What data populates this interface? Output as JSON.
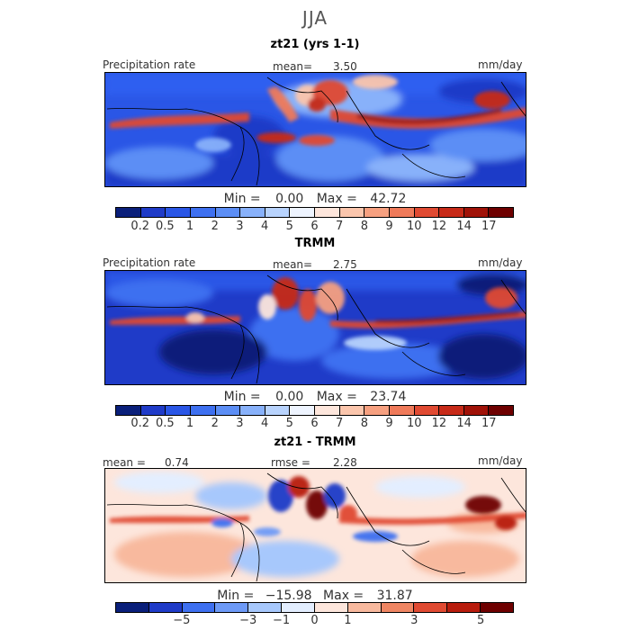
{
  "season": "JJA",
  "colors": {
    "precip": [
      "#0a1f7a",
      "#1f3bc8",
      "#2a56e6",
      "#3e70f0",
      "#5c8ef5",
      "#88b1fa",
      "#b8d3fd",
      "#eef4ff",
      "#fde6dc",
      "#fbc6ad",
      "#f6a080",
      "#ef7a5a",
      "#e04a32",
      "#c72a18",
      "#a01208",
      "#6e0000"
    ],
    "diff": [
      "#0a1f7a",
      "#1f3bc8",
      "#3e70f0",
      "#6d9af7",
      "#a7c8fc",
      "#e3eeff",
      "#fde6dc",
      "#f8b99e",
      "#ef8663",
      "#e04a32",
      "#b81c0d",
      "#6e0000"
    ]
  },
  "panels": [
    {
      "title": "zt21 (yrs 1-1)",
      "left_label": "Precipitation rate",
      "center_label": "mean=",
      "center_value": "3.50",
      "units": "mm/day",
      "min_label": "Min =",
      "min_value": "0.00",
      "max_label": "Max =",
      "max_value": "42.72",
      "ticks": [
        "0.2",
        "0.5",
        "1",
        "2",
        "3",
        "4",
        "5",
        "6",
        "7",
        "8",
        "9",
        "10",
        "12",
        "14",
        "17"
      ]
    },
    {
      "title": "TRMM",
      "left_label": "Precipitation rate",
      "center_label": "mean=",
      "center_value": "2.75",
      "units": "mm/day",
      "min_label": "Min =",
      "min_value": "0.00",
      "max_label": "Max =",
      "max_value": "23.74",
      "ticks": [
        "0.2",
        "0.5",
        "1",
        "2",
        "3",
        "4",
        "5",
        "6",
        "7",
        "8",
        "9",
        "10",
        "12",
        "14",
        "17"
      ]
    },
    {
      "title": "zt21 - TRMM",
      "left_label": "mean =",
      "left_value": "0.74",
      "center_label": "rmse =",
      "center_value": "2.28",
      "units": "mm/day",
      "min_label": "Min =",
      "min_value": "−15.98",
      "max_label": "Max =",
      "max_value": "31.87",
      "ticks": [
        "−5",
        "−3",
        "−1",
        "0",
        "1",
        "3",
        "5"
      ]
    }
  ]
}
